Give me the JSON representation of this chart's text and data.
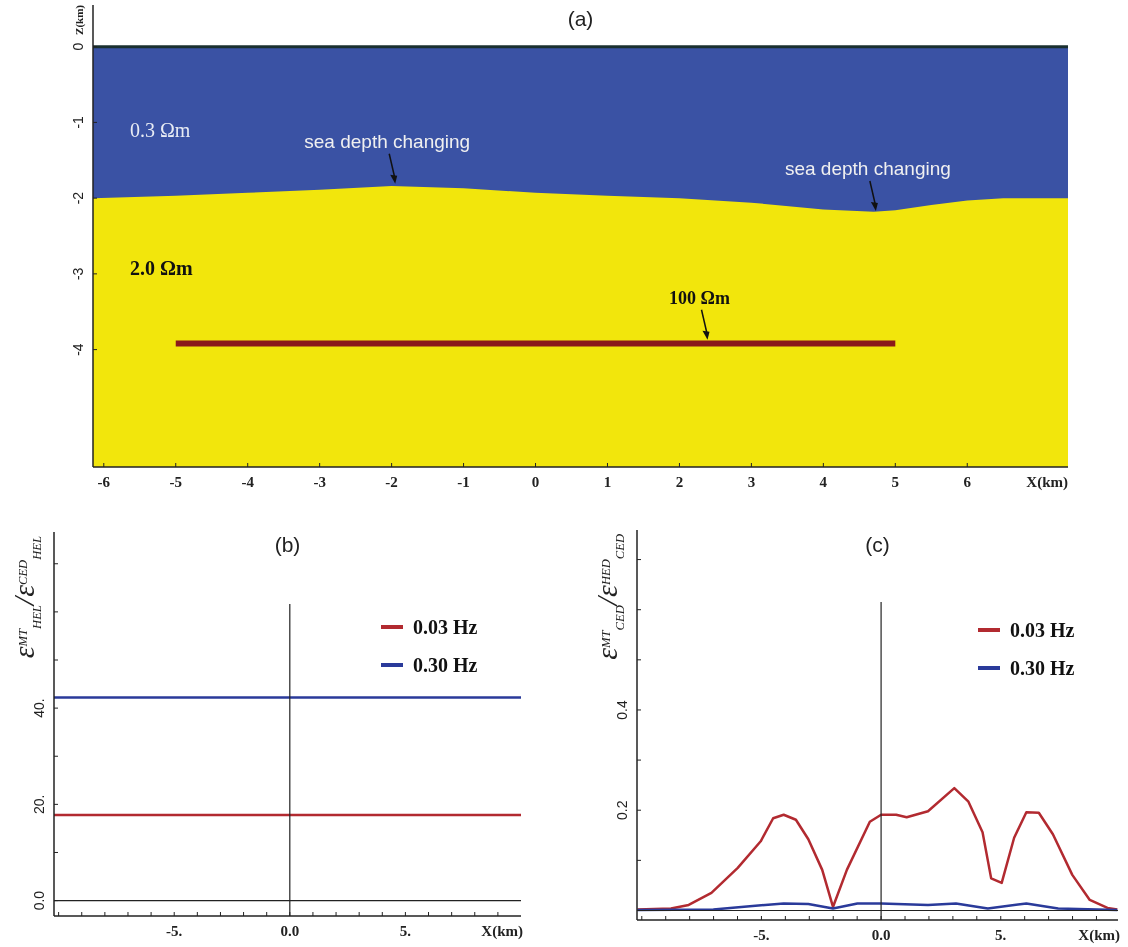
{
  "chart_data": [
    {
      "type": "area",
      "title": "(a)",
      "xlabel": "X(km)",
      "ylabel": "Z(km)",
      "xlim": [
        -6.15,
        7.4
      ],
      "ylim": [
        -5.55,
        0.55
      ],
      "xticks": [
        -6,
        -5,
        -4,
        -3,
        -2,
        -1,
        0,
        1,
        2,
        3,
        4,
        5,
        6
      ],
      "yticks": [
        0,
        -1,
        -2,
        -3,
        -4
      ],
      "bands": [
        {
          "axis": "y",
          "from": -5.55,
          "to": 0,
          "color": "#f2e60c"
        }
      ],
      "ref_lines": [
        {
          "axis": "y",
          "value": 0,
          "color": "#1a3030"
        }
      ],
      "series": [
        {
          "color": "#3a52a4",
          "x": [
            -6.15,
            -5,
            -4,
            -3,
            -2,
            -1,
            0,
            1,
            2,
            3,
            4,
            4.7,
            5,
            5.5,
            6,
            6.5,
            7.4
          ],
          "values": [
            -2.0,
            -1.97,
            -1.93,
            -1.89,
            -1.84,
            -1.87,
            -1.93,
            -1.97,
            -2.0,
            -2.06,
            -2.15,
            -2.18,
            -2.16,
            -2.09,
            -2.03,
            -2.0,
            -2.0
          ]
        },
        {
          "type": "line",
          "color": "#8b1a1a",
          "x": [
            -5,
            5
          ],
          "values": [
            -3.92,
            -3.92
          ]
        }
      ],
      "annotations": [
        "0.3 Ωm",
        "2.0 Ωm",
        {
          "text": "sea depth changing",
          "x": -1.95,
          "y": -1.81
        },
        {
          "text": "sea depth changing",
          "x": 4.73,
          "y": -2.17
        },
        {
          "text": "100 Ωm",
          "x": 2.39,
          "y": -3.87
        }
      ]
    },
    {
      "type": "line",
      "title": "(b)",
      "xlabel": "X(km)",
      "ylabel": "ε$^{MT}$$_{HEL}$/ε$^{CED}$$_{HEL}$",
      "xlim": [
        -10.2,
        10
      ],
      "ylim": [
        -3.2,
        76.6
      ],
      "xticks": [
        {
          "value": -10,
          "label": null
        },
        {
          "value": -9,
          "label": null
        },
        {
          "value": -8,
          "label": null
        },
        {
          "value": -7,
          "label": null
        },
        {
          "value": -6,
          "label": null
        },
        {
          "value": -5,
          "label": "-5."
        },
        {
          "value": -4,
          "label": null
        },
        {
          "value": -3,
          "label": null
        },
        {
          "value": -2,
          "label": null
        },
        {
          "value": -1,
          "label": null
        },
        {
          "value": 0,
          "label": "0.0"
        },
        {
          "value": 1,
          "label": null
        },
        {
          "value": 2,
          "label": null
        },
        {
          "value": 3,
          "label": null
        },
        {
          "value": 4,
          "label": null
        },
        {
          "value": 5,
          "label": "5."
        },
        {
          "value": 6,
          "label": null
        },
        {
          "value": 7,
          "label": null
        },
        {
          "value": 8,
          "label": null
        },
        {
          "value": 9,
          "label": null
        }
      ],
      "yticks": [
        {
          "value": 0,
          "label": "0.0"
        },
        {
          "value": 10,
          "label": null
        },
        {
          "value": 20,
          "label": "20."
        },
        {
          "value": 30,
          "label": null
        },
        {
          "value": 40,
          "label": "40."
        },
        {
          "value": 50,
          "label": null
        },
        {
          "value": 60,
          "label": null
        },
        {
          "value": 70,
          "label": null
        }
      ],
      "ref_lines": [
        {
          "axis": "x",
          "value": 0
        },
        {
          "axis": "y",
          "value": 0
        }
      ],
      "legend": "top right",
      "series": [
        {
          "name": "0.03 Hz",
          "color": "#b22a30",
          "x": [
            -10.2,
            10
          ],
          "values": [
            17.8,
            17.8
          ]
        },
        {
          "name": "0.30 Hz",
          "color": "#2a3a9a",
          "x": [
            -10.2,
            10
          ],
          "values": [
            42.2,
            42.2
          ]
        }
      ]
    },
    {
      "type": "line",
      "title": "(c)",
      "xlabel": "X(km)",
      "ylabel": "ε$^{MT}$$_{CED}$/ε$^{HED}$$_{CED}$",
      "xlim": [
        -10.2,
        9.9
      ],
      "ylim": [
        -0.019,
        0.759
      ],
      "xticks": [
        {
          "value": -10,
          "label": null
        },
        {
          "value": -9,
          "label": null
        },
        {
          "value": -8,
          "label": null
        },
        {
          "value": -7,
          "label": null
        },
        {
          "value": -6,
          "label": null
        },
        {
          "value": -5,
          "label": "-5."
        },
        {
          "value": -4,
          "label": null
        },
        {
          "value": -3,
          "label": null
        },
        {
          "value": -2,
          "label": null
        },
        {
          "value": -1,
          "label": null
        },
        {
          "value": 0,
          "label": "0.0"
        },
        {
          "value": 1,
          "label": null
        },
        {
          "value": 2,
          "label": null
        },
        {
          "value": 3,
          "label": null
        },
        {
          "value": 4,
          "label": null
        },
        {
          "value": 5,
          "label": "5."
        },
        {
          "value": 6,
          "label": null
        },
        {
          "value": 7,
          "label": null
        },
        {
          "value": 8,
          "label": null
        },
        {
          "value": 9,
          "label": null
        }
      ],
      "yticks": [
        {
          "value": 0.1,
          "label": null
        },
        {
          "value": 0.2,
          "label": "0.2"
        },
        {
          "value": 0.3,
          "label": null
        },
        {
          "value": 0.4,
          "label": "0.4"
        },
        {
          "value": 0.5,
          "label": null
        },
        {
          "value": 0.6,
          "label": null
        },
        {
          "value": 0.7,
          "label": null
        }
      ],
      "ref_lines": [
        {
          "axis": "x",
          "value": 0
        },
        {
          "axis": "y",
          "value": 0
        }
      ],
      "legend": "top right",
      "series": [
        {
          "name": "0.03 Hz",
          "color": "#b22a30",
          "x": [
            -10.18,
            -8.78,
            -8.04,
            -7.09,
            -5.99,
            -5.03,
            -4.51,
            -4.07,
            -3.56,
            -3.04,
            -2.46,
            -2.01,
            -1.43,
            -0.47,
            0,
            0.63,
            1.07,
            1.96,
            3.06,
            3.65,
            4.24,
            4.6,
            5.04,
            5.56,
            6.07,
            6.59,
            7.18,
            7.99,
            8.72,
            9.46,
            9.87
          ],
          "values": [
            0.002,
            0.004,
            0.011,
            0.035,
            0.085,
            0.138,
            0.184,
            0.191,
            0.181,
            0.142,
            0.081,
            0.007,
            0.081,
            0.177,
            0.191,
            0.191,
            0.186,
            0.198,
            0.244,
            0.217,
            0.156,
            0.064,
            0.055,
            0.145,
            0.196,
            0.195,
            0.152,
            0.071,
            0.021,
            0.005,
            0.002
          ]
        },
        {
          "name": "0.30 Hz",
          "color": "#2a3a9a",
          "x": [
            -10.18,
            -7.01,
            -5.84,
            -4.07,
            -3.04,
            -2.01,
            -0.99,
            0,
            1.96,
            3.13,
            4.46,
            6.07,
            7.4,
            9.87
          ],
          "values": [
            0.001,
            0.002,
            0.007,
            0.014,
            0.013,
            0.004,
            0.014,
            0.014,
            0.011,
            0.014,
            0.004,
            0.014,
            0.004,
            0.001
          ]
        }
      ]
    }
  ]
}
